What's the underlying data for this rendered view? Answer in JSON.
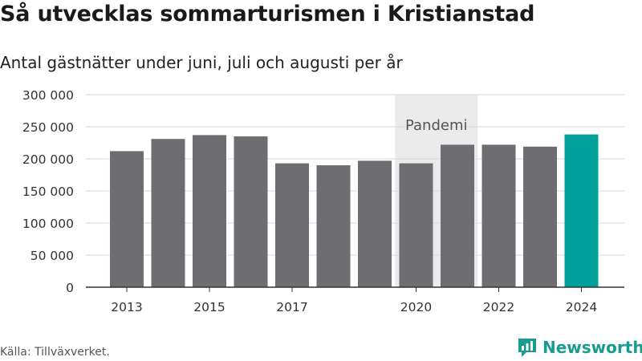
{
  "header": {
    "title": "Så utvecklas sommarturismen i Kristianstad",
    "subtitle": "Antal gästnätter under juni, juli och augusti per år"
  },
  "footer": {
    "source": "Källa: Tillväxverket.",
    "brand": "Newsworthy",
    "brand_icon": "bar-chart-speech-bubble-icon"
  },
  "colors": {
    "bar": "#6e6d72",
    "highlight": "#00a19a",
    "pandemic_band": "#ebebeb",
    "grid": "#d9d9d9",
    "axis": "#333333",
    "brand": "#1a9b8f"
  },
  "chart_data": {
    "type": "bar",
    "categories": [
      "2013",
      "2014",
      "2015",
      "2016",
      "2017",
      "2018",
      "2019",
      "2020",
      "2021",
      "2022",
      "2023",
      "2024"
    ],
    "values": [
      212000,
      231000,
      237000,
      235000,
      193000,
      190000,
      197000,
      193000,
      222000,
      222000,
      219000,
      238000
    ],
    "highlight_category": "2024",
    "x_tick_labels": [
      "2013",
      "2015",
      "2017",
      "2020",
      "2022",
      "2024"
    ],
    "ylim": [
      0,
      300000
    ],
    "y_ticks": [
      0,
      50000,
      100000,
      150000,
      200000,
      250000,
      300000
    ],
    "y_tick_labels": [
      "0",
      "50 000",
      "100 000",
      "150 000",
      "200 000",
      "250 000",
      "300 000"
    ],
    "grid": true,
    "annotation": {
      "label": "Pandemi",
      "from": "2020",
      "to": "2021"
    },
    "xlabel": "",
    "ylabel": ""
  }
}
